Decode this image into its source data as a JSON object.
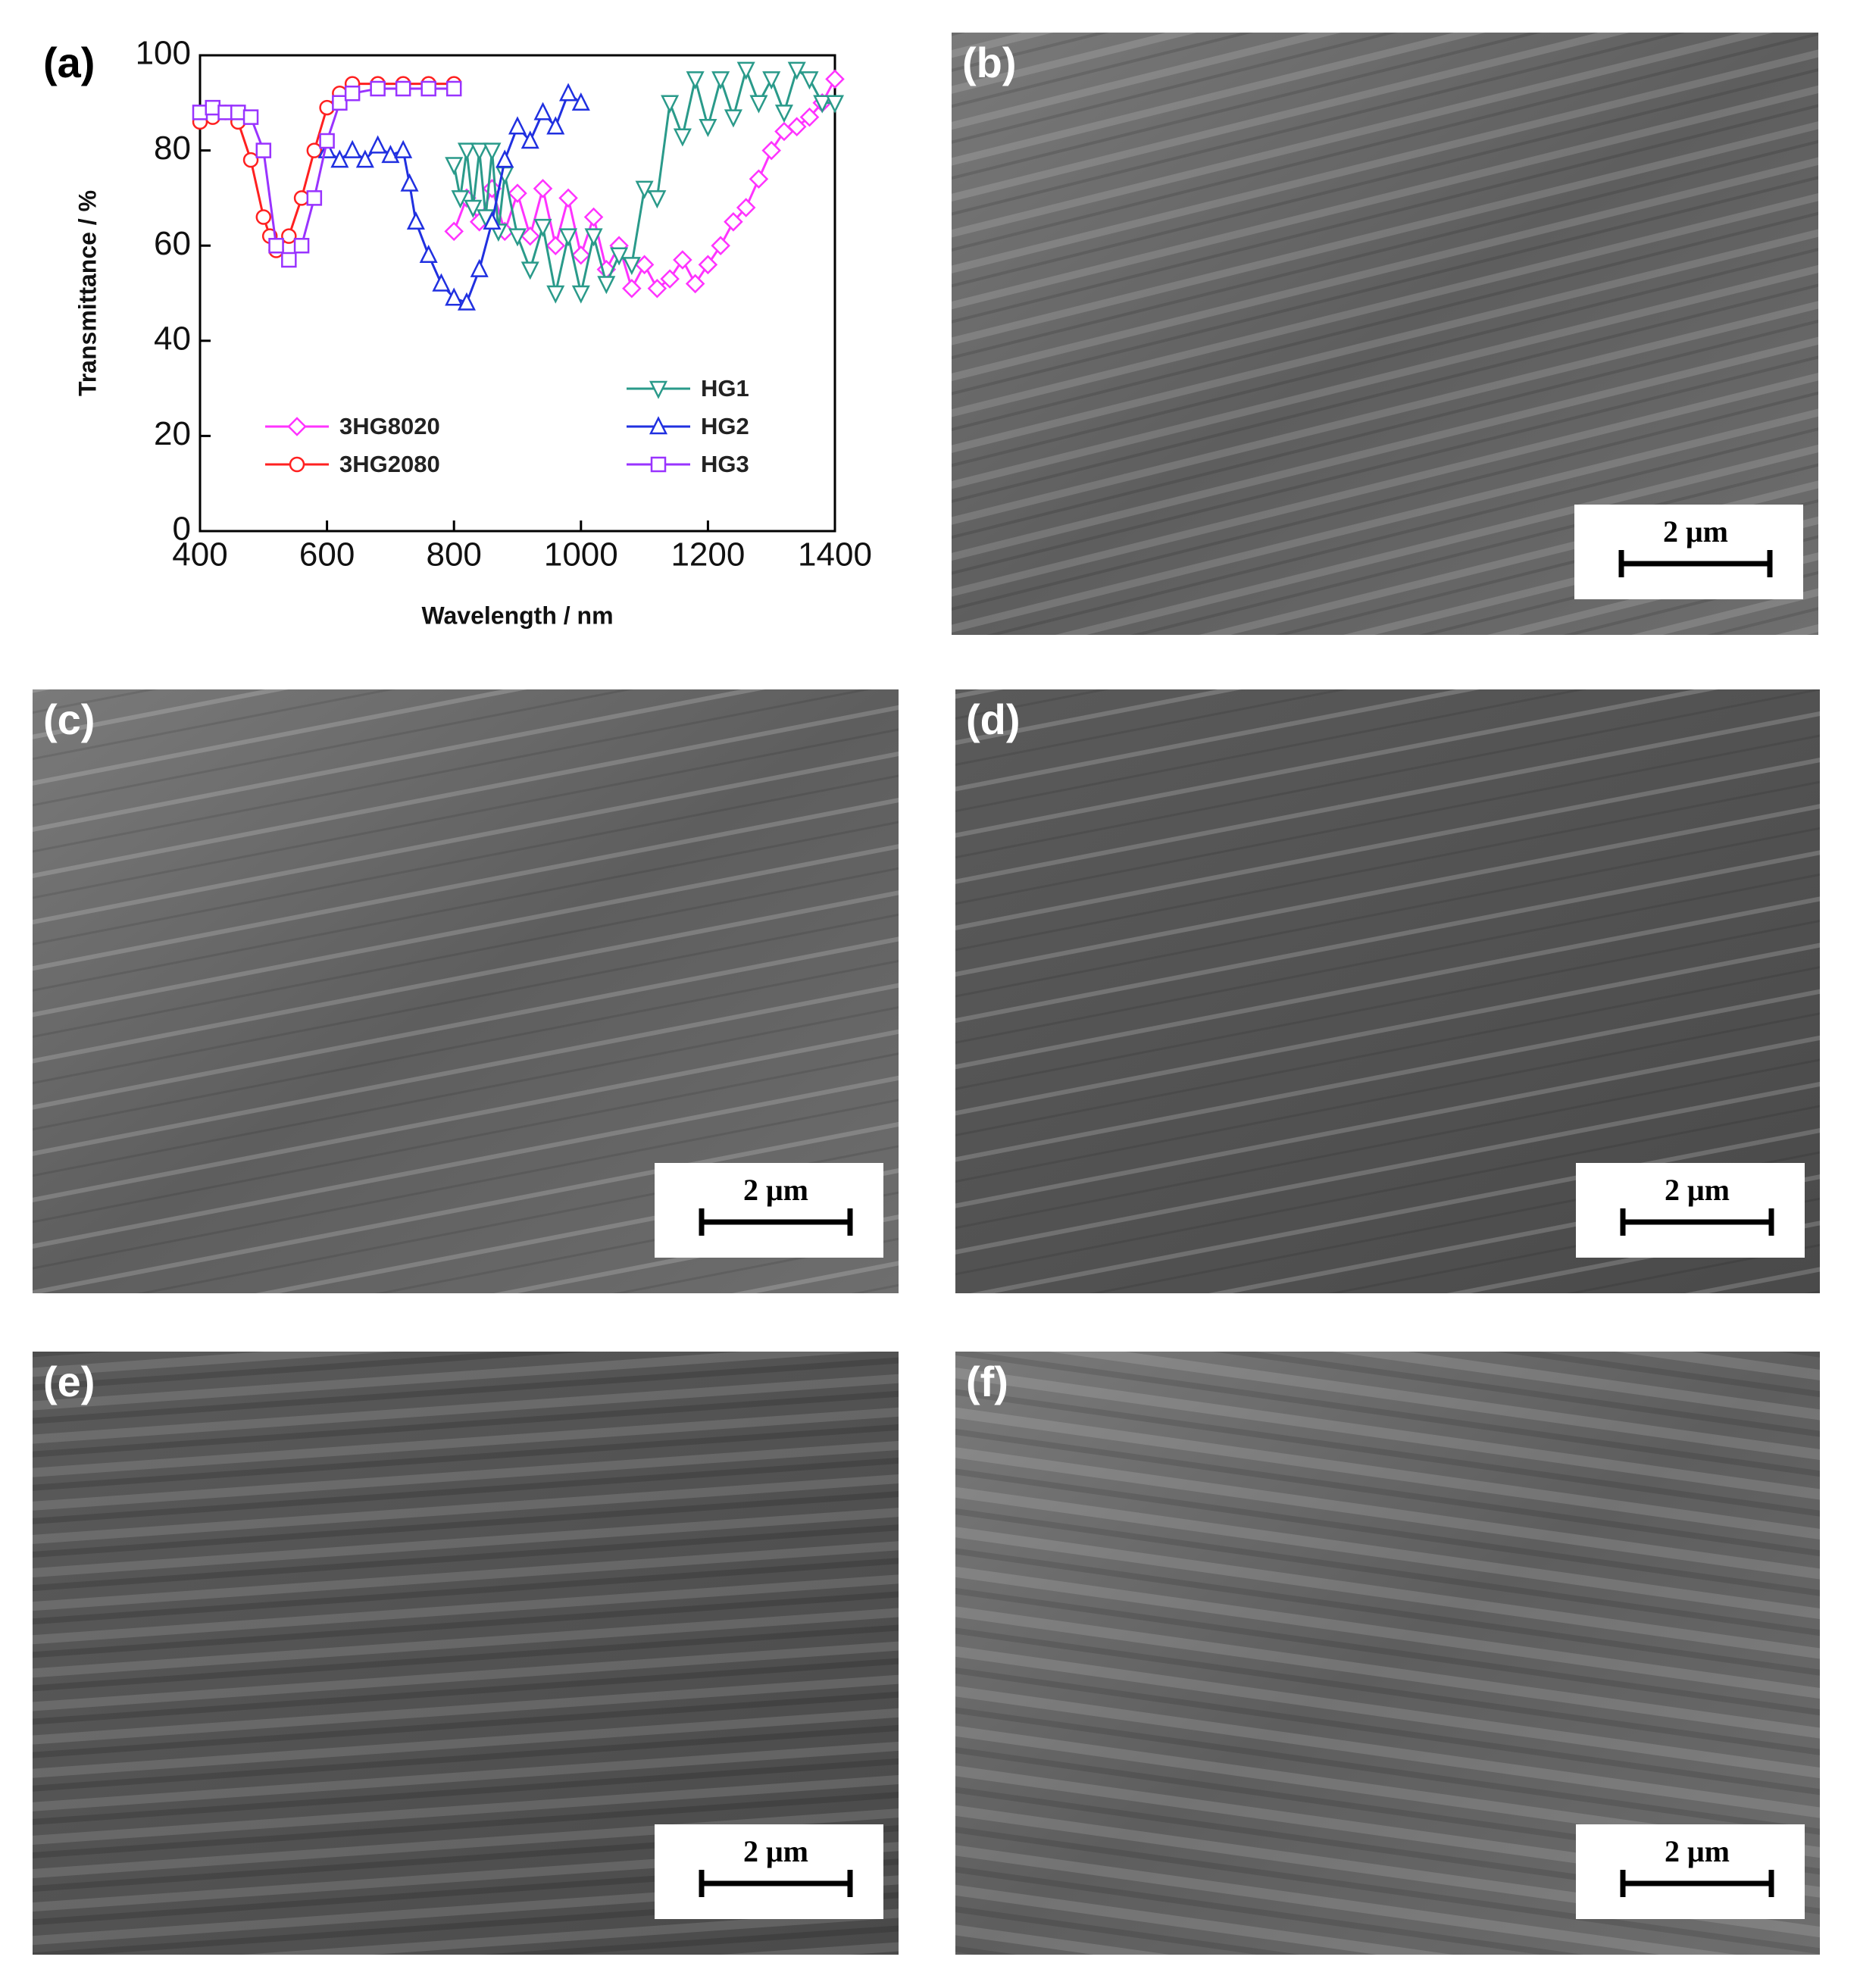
{
  "chart_data": {
    "type": "line",
    "xlabel": "Wavelength / nm",
    "ylabel": "Transmittance / %",
    "xlim": [
      400,
      1400
    ],
    "xticks": [
      400,
      600,
      800,
      1000,
      1200,
      1400
    ],
    "ylim": [
      0,
      100
    ],
    "yticks": [
      0,
      20,
      40,
      60,
      80,
      100
    ],
    "series": [
      {
        "name": "3HG8020",
        "color": "#ff33ff",
        "marker": "diamond",
        "x": [
          800,
          820,
          840,
          860,
          880,
          900,
          920,
          940,
          960,
          980,
          1000,
          1020,
          1040,
          1060,
          1080,
          1100,
          1120,
          1140,
          1160,
          1180,
          1200,
          1220,
          1240,
          1260,
          1280,
          1300,
          1320,
          1340,
          1360,
          1380,
          1400
        ],
        "values": [
          63,
          70,
          65,
          72,
          63,
          71,
          62,
          72,
          60,
          70,
          58,
          66,
          55,
          60,
          51,
          56,
          51,
          53,
          57,
          52,
          56,
          60,
          65,
          68,
          74,
          80,
          84,
          85,
          87,
          90,
          95
        ]
      },
      {
        "name": "3HG2080",
        "color": "#ff2020",
        "marker": "circle",
        "x": [
          400,
          420,
          440,
          460,
          480,
          500,
          510,
          520,
          540,
          560,
          580,
          600,
          620,
          640,
          680,
          720,
          760,
          800
        ],
        "values": [
          86,
          87,
          88,
          86,
          78,
          66,
          62,
          59,
          62,
          70,
          80,
          89,
          92,
          94,
          94,
          94,
          94,
          94
        ]
      },
      {
        "name": "HG1",
        "color": "#2a9a8a",
        "marker": "triangle-down",
        "x": [
          800,
          810,
          820,
          830,
          840,
          850,
          860,
          870,
          880,
          900,
          920,
          940,
          960,
          980,
          1000,
          1020,
          1040,
          1060,
          1080,
          1100,
          1120,
          1140,
          1160,
          1180,
          1200,
          1220,
          1240,
          1260,
          1280,
          1300,
          1320,
          1340,
          1360,
          1380,
          1400
        ],
        "values": [
          77,
          70,
          80,
          68,
          80,
          66,
          80,
          63,
          75,
          62,
          55,
          64,
          50,
          62,
          50,
          62,
          52,
          58,
          56,
          72,
          70,
          90,
          83,
          95,
          85,
          95,
          87,
          97,
          90,
          95,
          88,
          97,
          95,
          90,
          90
        ]
      },
      {
        "name": "HG2",
        "color": "#2030e0",
        "marker": "triangle-up",
        "x": [
          600,
          620,
          640,
          660,
          680,
          700,
          720,
          730,
          740,
          760,
          780,
          800,
          820,
          840,
          860,
          880,
          900,
          920,
          940,
          960,
          980,
          1000
        ],
        "values": [
          80,
          78,
          80,
          78,
          81,
          79,
          80,
          73,
          65,
          58,
          52,
          49,
          48,
          55,
          65,
          78,
          85,
          82,
          88,
          85,
          92,
          90
        ]
      },
      {
        "name": "HG3",
        "color": "#9933ff",
        "marker": "square",
        "x": [
          400,
          420,
          440,
          460,
          480,
          500,
          520,
          540,
          560,
          580,
          600,
          620,
          640,
          680,
          720,
          760,
          800
        ],
        "values": [
          88,
          89,
          88,
          88,
          87,
          80,
          60,
          57,
          60,
          70,
          82,
          90,
          92,
          93,
          93,
          93,
          93
        ]
      }
    ]
  },
  "panels": [
    {
      "label": "(a)"
    },
    {
      "label": "(b)",
      "scale_bar": "2 μm"
    },
    {
      "label": "(c)",
      "scale_bar": "2 μm"
    },
    {
      "label": "(d)",
      "scale_bar": "2 μm"
    },
    {
      "label": "(e)",
      "scale_bar": "2 μm"
    },
    {
      "label": "(f)",
      "scale_bar": "2 μm"
    }
  ]
}
